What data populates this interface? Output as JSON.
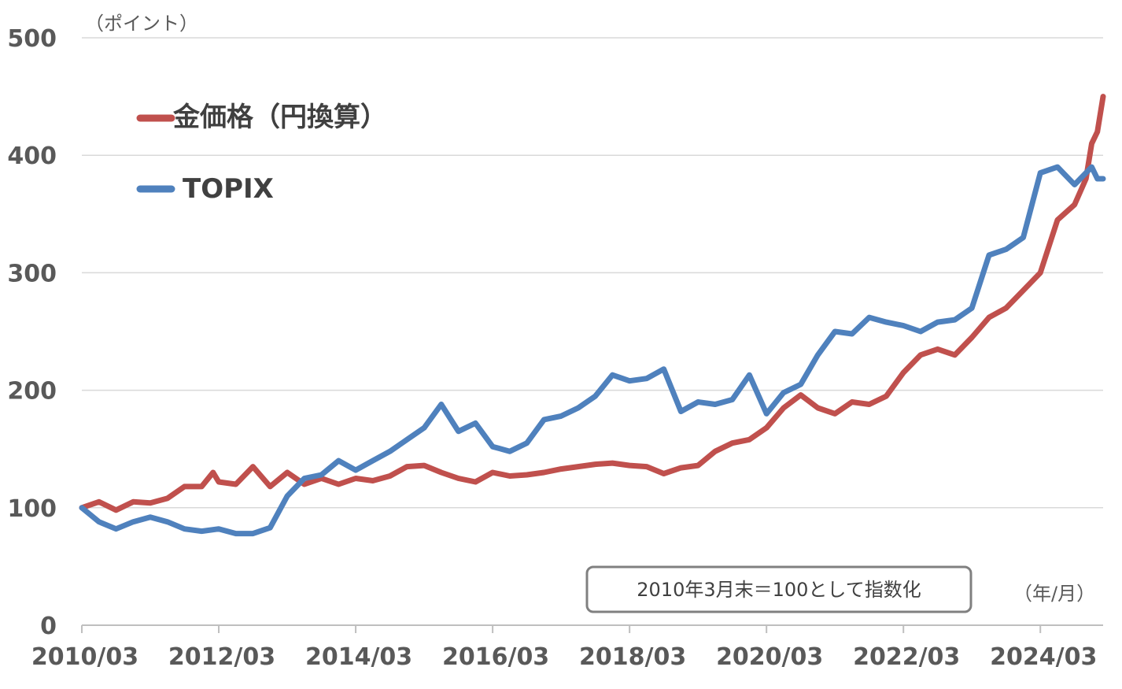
{
  "chart_data": {
    "type": "line",
    "y_unit_label": "（ポイント）",
    "x_unit_label": "（年/月）",
    "note": "2010年3月末＝100として指数化",
    "ylim": [
      0,
      500
    ],
    "yticks": [
      0,
      100,
      200,
      300,
      400,
      500
    ],
    "xticks": [
      "2010/03",
      "2012/03",
      "2014/03",
      "2016/03",
      "2018/03",
      "2020/03",
      "2022/03",
      "2024/03"
    ],
    "x_start": "2010-03",
    "x_end": "2025-02",
    "grid": "horizontal",
    "legend_position": "top-left",
    "series": [
      {
        "name": "金価格（円換算）",
        "color": "#c0504d",
        "points": [
          [
            "2010-03",
            100
          ],
          [
            "2010-06",
            105
          ],
          [
            "2010-09",
            98
          ],
          [
            "2010-12",
            105
          ],
          [
            "2011-03",
            104
          ],
          [
            "2011-06",
            108
          ],
          [
            "2011-09",
            118
          ],
          [
            "2011-12",
            118
          ],
          [
            "2012-02",
            130
          ],
          [
            "2012-03",
            122
          ],
          [
            "2012-06",
            120
          ],
          [
            "2012-09",
            135
          ],
          [
            "2012-12",
            118
          ],
          [
            "2013-03",
            130
          ],
          [
            "2013-06",
            120
          ],
          [
            "2013-09",
            125
          ],
          [
            "2013-12",
            120
          ],
          [
            "2014-03",
            125
          ],
          [
            "2014-06",
            123
          ],
          [
            "2014-09",
            127
          ],
          [
            "2014-12",
            135
          ],
          [
            "2015-03",
            136
          ],
          [
            "2015-06",
            130
          ],
          [
            "2015-09",
            125
          ],
          [
            "2015-12",
            122
          ],
          [
            "2016-03",
            130
          ],
          [
            "2016-06",
            127
          ],
          [
            "2016-09",
            128
          ],
          [
            "2016-12",
            130
          ],
          [
            "2017-03",
            133
          ],
          [
            "2017-06",
            135
          ],
          [
            "2017-09",
            137
          ],
          [
            "2017-12",
            138
          ],
          [
            "2018-03",
            136
          ],
          [
            "2018-06",
            135
          ],
          [
            "2018-09",
            129
          ],
          [
            "2018-12",
            134
          ],
          [
            "2019-03",
            136
          ],
          [
            "2019-06",
            148
          ],
          [
            "2019-09",
            155
          ],
          [
            "2019-12",
            158
          ],
          [
            "2020-03",
            168
          ],
          [
            "2020-06",
            185
          ],
          [
            "2020-09",
            196
          ],
          [
            "2020-12",
            185
          ],
          [
            "2021-03",
            180
          ],
          [
            "2021-06",
            190
          ],
          [
            "2021-09",
            188
          ],
          [
            "2021-12",
            195
          ],
          [
            "2022-03",
            215
          ],
          [
            "2022-06",
            230
          ],
          [
            "2022-09",
            235
          ],
          [
            "2022-12",
            230
          ],
          [
            "2023-03",
            245
          ],
          [
            "2023-06",
            262
          ],
          [
            "2023-09",
            270
          ],
          [
            "2023-12",
            285
          ],
          [
            "2024-03",
            300
          ],
          [
            "2024-06",
            345
          ],
          [
            "2024-09",
            358
          ],
          [
            "2024-11",
            380
          ],
          [
            "2024-12",
            410
          ],
          [
            "2025-01",
            420
          ],
          [
            "2025-02",
            450
          ]
        ]
      },
      {
        "name": "TOPIX",
        "color": "#4f81bd",
        "points": [
          [
            "2010-03",
            100
          ],
          [
            "2010-06",
            88
          ],
          [
            "2010-09",
            82
          ],
          [
            "2010-12",
            88
          ],
          [
            "2011-03",
            92
          ],
          [
            "2011-06",
            88
          ],
          [
            "2011-09",
            82
          ],
          [
            "2011-12",
            80
          ],
          [
            "2012-03",
            82
          ],
          [
            "2012-06",
            78
          ],
          [
            "2012-09",
            78
          ],
          [
            "2012-12",
            83
          ],
          [
            "2013-03",
            110
          ],
          [
            "2013-06",
            125
          ],
          [
            "2013-09",
            128
          ],
          [
            "2013-12",
            140
          ],
          [
            "2014-03",
            132
          ],
          [
            "2014-06",
            140
          ],
          [
            "2014-09",
            148
          ],
          [
            "2014-12",
            158
          ],
          [
            "2015-03",
            168
          ],
          [
            "2015-06",
            188
          ],
          [
            "2015-09",
            165
          ],
          [
            "2015-12",
            172
          ],
          [
            "2016-03",
            152
          ],
          [
            "2016-06",
            148
          ],
          [
            "2016-09",
            155
          ],
          [
            "2016-12",
            175
          ],
          [
            "2017-03",
            178
          ],
          [
            "2017-06",
            185
          ],
          [
            "2017-09",
            195
          ],
          [
            "2017-12",
            213
          ],
          [
            "2018-03",
            208
          ],
          [
            "2018-06",
            210
          ],
          [
            "2018-09",
            218
          ],
          [
            "2018-12",
            182
          ],
          [
            "2019-03",
            190
          ],
          [
            "2019-06",
            188
          ],
          [
            "2019-09",
            192
          ],
          [
            "2019-12",
            213
          ],
          [
            "2020-03",
            180
          ],
          [
            "2020-06",
            198
          ],
          [
            "2020-09",
            205
          ],
          [
            "2020-12",
            230
          ],
          [
            "2021-03",
            250
          ],
          [
            "2021-06",
            248
          ],
          [
            "2021-09",
            262
          ],
          [
            "2021-12",
            258
          ],
          [
            "2022-03",
            255
          ],
          [
            "2022-06",
            250
          ],
          [
            "2022-09",
            258
          ],
          [
            "2022-12",
            260
          ],
          [
            "2023-03",
            270
          ],
          [
            "2023-06",
            315
          ],
          [
            "2023-09",
            320
          ],
          [
            "2023-12",
            330
          ],
          [
            "2024-03",
            385
          ],
          [
            "2024-06",
            390
          ],
          [
            "2024-09",
            375
          ],
          [
            "2024-12",
            390
          ],
          [
            "2025-01",
            380
          ],
          [
            "2025-02",
            380
          ]
        ]
      }
    ]
  }
}
